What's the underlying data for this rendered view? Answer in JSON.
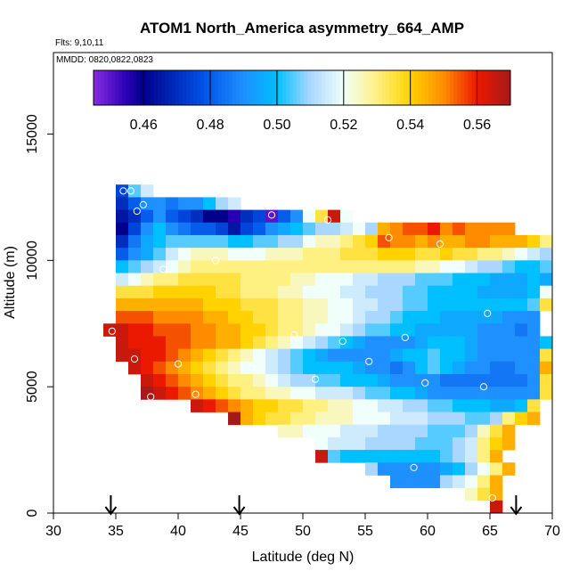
{
  "chart_data": {
    "type": "heatmap",
    "title": "ATOM1 North_America asymmetry_664_AMP",
    "flights_label": "Flts: 9,10,11",
    "dates_label": "MMDD: 0820,0822,0823",
    "xlabel": "Latitude (deg N)",
    "ylabel": "Altitude (m)",
    "xlim": [
      30,
      70
    ],
    "ylim": [
      0,
      18500
    ],
    "xticks": [
      30,
      35,
      40,
      45,
      50,
      55,
      60,
      65,
      70
    ],
    "yticks": [
      0,
      5000,
      10000,
      15000
    ],
    "colorbar": {
      "range": [
        0.445,
        0.57
      ],
      "ticks": [
        0.46,
        0.48,
        0.5,
        0.52,
        0.54,
        0.56
      ],
      "tick_labels": [
        "0.46",
        "0.48",
        "0.50",
        "0.52",
        "0.54",
        "0.56"
      ]
    },
    "bin_size": {
      "lat": 1,
      "alt": 500
    },
    "rows": [
      {
        "alt": 12750,
        "lat_start": 35,
        "values": [
          0.475,
          0.505,
          0.515
        ]
      },
      {
        "alt": 12250,
        "lat_start": 35,
        "values": [
          0.47,
          0.48,
          0.49,
          0.49,
          0.485,
          0.49,
          0.49,
          0.5,
          0.51,
          0.515
        ]
      },
      {
        "alt": 11750,
        "lat_start": 35,
        "values": [
          0.465,
          0.47,
          0.48,
          0.49,
          0.48,
          0.475,
          0.47,
          0.46,
          0.46,
          0.455,
          0.47,
          0.475,
          0.45,
          0.48,
          0.49,
          0.52,
          0.535,
          0.565,
          0.52
        ]
      },
      {
        "alt": 11250,
        "lat_start": 35,
        "values": [
          0.46,
          0.475,
          0.49,
          0.5,
          0.49,
          0.485,
          0.48,
          0.48,
          0.475,
          0.465,
          0.475,
          0.48,
          0.49,
          0.495,
          0.5,
          0.505,
          0.51,
          0.51,
          0.515,
          0.52,
          0.51,
          0.545,
          0.55,
          0.555,
          0.555,
          0.56,
          0.55,
          0.555,
          0.55,
          0.55,
          0.55,
          0.55
        ]
      },
      {
        "alt": 10750,
        "lat_start": 35,
        "values": [
          0.47,
          0.485,
          0.495,
          0.5,
          0.505,
          0.505,
          0.505,
          0.505,
          0.505,
          0.5,
          0.5,
          0.505,
          0.505,
          0.51,
          0.51,
          0.52,
          0.525,
          0.525,
          0.53,
          0.535,
          0.54,
          0.555,
          0.55,
          0.55,
          0.545,
          0.55,
          0.545,
          0.545,
          0.55,
          0.55,
          0.545,
          0.545,
          0.545,
          0.54,
          0.53,
          0.525
        ]
      },
      {
        "alt": 10250,
        "lat_start": 35,
        "values": [
          0.48,
          0.49,
          0.495,
          0.505,
          0.515,
          0.52,
          0.525,
          0.525,
          0.525,
          0.52,
          0.52,
          0.52,
          0.525,
          0.525,
          0.525,
          0.53,
          0.53,
          0.53,
          0.535,
          0.535,
          0.535,
          0.54,
          0.54,
          0.54,
          0.535,
          0.535,
          0.54,
          0.535,
          0.535,
          0.53,
          0.53,
          0.525,
          0.52,
          0.515,
          0.51,
          0.515
        ]
      },
      {
        "alt": 9750,
        "lat_start": 35,
        "values": [
          0.5,
          0.505,
          0.51,
          0.515,
          0.52,
          0.525,
          0.53,
          0.53,
          0.53,
          0.53,
          0.53,
          0.53,
          0.53,
          0.53,
          0.53,
          0.53,
          0.53,
          0.53,
          0.53,
          0.53,
          0.53,
          0.53,
          0.53,
          0.53,
          0.525,
          0.525,
          0.52,
          0.52,
          0.515,
          0.51,
          0.51,
          0.505,
          0.5,
          0.5,
          0.505
        ]
      },
      {
        "alt": 9250,
        "lat_start": 35,
        "values": [
          0.515,
          0.52,
          0.525,
          0.53,
          0.53,
          0.535,
          0.535,
          0.535,
          0.535,
          0.535,
          0.53,
          0.53,
          0.53,
          0.53,
          0.525,
          0.525,
          0.52,
          0.52,
          0.52,
          0.515,
          0.515,
          0.51,
          0.51,
          0.51,
          0.505,
          0.505,
          0.505,
          0.5,
          0.5,
          0.5,
          0.495,
          0.495,
          0.495,
          0.5,
          0.495
        ]
      },
      {
        "alt": 8750,
        "lat_start": 35,
        "values": [
          0.535,
          0.535,
          0.535,
          0.54,
          0.54,
          0.54,
          0.54,
          0.54,
          0.535,
          0.535,
          0.53,
          0.53,
          0.53,
          0.525,
          0.525,
          0.52,
          0.52,
          0.52,
          0.515,
          0.515,
          0.51,
          0.51,
          0.51,
          0.505,
          0.505,
          0.5,
          0.5,
          0.5,
          0.5,
          0.495,
          0.495,
          0.495,
          0.495,
          0.5,
          0.52
        ]
      },
      {
        "alt": 8250,
        "lat_start": 35,
        "values": [
          0.545,
          0.545,
          0.545,
          0.545,
          0.545,
          0.545,
          0.545,
          0.54,
          0.54,
          0.54,
          0.535,
          0.535,
          0.535,
          0.53,
          0.53,
          0.525,
          0.525,
          0.52,
          0.52,
          0.515,
          0.515,
          0.51,
          0.51,
          0.505,
          0.505,
          0.5,
          0.5,
          0.5,
          0.5,
          0.5,
          0.5,
          0.5,
          0.5,
          0.505,
          0.535
        ]
      },
      {
        "alt": 7750,
        "lat_start": 35,
        "values": [
          0.555,
          0.555,
          0.555,
          0.55,
          0.55,
          0.55,
          0.55,
          0.545,
          0.545,
          0.54,
          0.54,
          0.535,
          0.535,
          0.53,
          0.53,
          0.525,
          0.525,
          0.52,
          0.52,
          0.515,
          0.51,
          0.51,
          0.505,
          0.5,
          0.5,
          0.5,
          0.495,
          0.495,
          0.495,
          0.495,
          0.495,
          0.49,
          0.49,
          0.49
        ]
      },
      {
        "alt": 7250,
        "lat_start": 34,
        "values": [
          0.565,
          0.565,
          0.56,
          0.56,
          0.555,
          0.555,
          0.555,
          0.55,
          0.55,
          0.545,
          0.545,
          0.54,
          0.54,
          0.535,
          0.53,
          0.53,
          0.525,
          0.52,
          0.52,
          0.515,
          0.51,
          0.505,
          0.505,
          0.5,
          0.5,
          0.495,
          0.495,
          0.495,
          0.495,
          0.495,
          0.49,
          0.49,
          0.49,
          0.485,
          0.49
        ]
      },
      {
        "alt": 6750,
        "lat_start": 35,
        "values": [
          0.565,
          0.56,
          0.56,
          0.56,
          0.555,
          0.555,
          0.55,
          0.55,
          0.545,
          0.545,
          0.54,
          0.535,
          0.53,
          0.525,
          0.52,
          0.515,
          0.51,
          0.505,
          0.5,
          0.495,
          0.49,
          0.49,
          0.49,
          0.49,
          0.495,
          0.5,
          0.5,
          0.5,
          0.495,
          0.49,
          0.49,
          0.49,
          0.49,
          0.49,
          0.5
        ]
      },
      {
        "alt": 6250,
        "lat_start": 35,
        "values": [
          0.565,
          0.565,
          0.56,
          0.56,
          0.555,
          0.55,
          0.545,
          0.54,
          0.535,
          0.53,
          0.525,
          0.52,
          0.515,
          0.51,
          0.505,
          0.5,
          0.495,
          0.49,
          0.49,
          0.49,
          0.49,
          0.49,
          0.495,
          0.5,
          0.5,
          0.505,
          0.5,
          0.5,
          0.495,
          0.49,
          0.49,
          0.49,
          0.49,
          0.49,
          0.535
        ]
      },
      {
        "alt": 5750,
        "lat_start": 36,
        "values": [
          0.565,
          0.56,
          0.555,
          0.55,
          0.545,
          0.54,
          0.535,
          0.53,
          0.525,
          0.52,
          0.52,
          0.515,
          0.51,
          0.505,
          0.5,
          0.5,
          0.5,
          0.5,
          0.495,
          0.49,
          0.49,
          0.485,
          0.49,
          0.5,
          0.505,
          0.5,
          0.495,
          0.49,
          0.49,
          0.485,
          0.485,
          0.49,
          0.49,
          0.545
        ]
      },
      {
        "alt": 5250,
        "lat_start": 37,
        "values": [
          0.565,
          0.56,
          0.555,
          0.55,
          0.545,
          0.54,
          0.535,
          0.53,
          0.53,
          0.525,
          0.52,
          0.515,
          0.51,
          0.51,
          0.505,
          0.505,
          0.5,
          0.5,
          0.5,
          0.495,
          0.49,
          0.49,
          0.49,
          0.49,
          0.485,
          0.485,
          0.485,
          0.485,
          0.485,
          0.485,
          0.485,
          0.49,
          0.535
        ]
      },
      {
        "alt": 4750,
        "lat_start": 37,
        "values": [
          0.57,
          0.565,
          0.56,
          0.555,
          0.55,
          0.545,
          0.54,
          0.535,
          0.53,
          0.53,
          0.525,
          0.525,
          0.52,
          0.52,
          0.515,
          0.515,
          0.515,
          0.51,
          0.505,
          0.505,
          0.5,
          0.5,
          0.495,
          0.49,
          0.49,
          0.49,
          0.49,
          0.49,
          0.49,
          0.49,
          0.49,
          0.49,
          0.535
        ]
      },
      {
        "alt": 4250,
        "lat_start": 41,
        "values": [
          0.565,
          0.56,
          0.555,
          0.55,
          0.545,
          0.54,
          0.54,
          0.535,
          0.535,
          0.53,
          0.53,
          0.525,
          0.525,
          0.52,
          0.52,
          0.515,
          0.515,
          0.51,
          0.51,
          0.505,
          0.505,
          0.5,
          0.5,
          0.5,
          0.495,
          0.495,
          0.5,
          0.535
        ]
      },
      {
        "alt": 3750,
        "lat_start": 44,
        "values": [
          0.57,
          0.545,
          0.54,
          0.535,
          0.535,
          0.53,
          0.53,
          0.525,
          0.525,
          0.525,
          0.52,
          0.52,
          0.52,
          0.515,
          0.515,
          0.515,
          0.51,
          0.51,
          0.51,
          0.505,
          0.505,
          0.51,
          0.53,
          0.54,
          0.545
        ]
      },
      {
        "alt": 3250,
        "lat_start": 48,
        "values": [
          0.525,
          0.525,
          0.52,
          0.52,
          0.52,
          0.515,
          0.515,
          0.515,
          0.51,
          0.51,
          0.51,
          0.51,
          0.505,
          0.505,
          0.505,
          0.51,
          0.525,
          0.535,
          0.545
        ]
      },
      {
        "alt": 2750,
        "lat_start": 51,
        "values": [
          0.52,
          0.515,
          0.515,
          0.515,
          0.51,
          0.51,
          0.51,
          0.51,
          0.505,
          0.505,
          0.505,
          0.51,
          0.515,
          0.53,
          0.54,
          0.545
        ]
      },
      {
        "alt": 2250,
        "lat_start": 51,
        "values": [
          0.565,
          0.505,
          0.5,
          0.5,
          0.5,
          0.5,
          0.5,
          0.5,
          0.5,
          0.5,
          0.505,
          0.51,
          0.515,
          0.53,
          0.545
        ]
      },
      {
        "alt": 1750,
        "lat_start": 55,
        "values": [
          0.51,
          0.49,
          0.49,
          0.49,
          0.49,
          0.49,
          0.495,
          0.5,
          0.51,
          0.52,
          0.53,
          0.545
        ]
      },
      {
        "alt": 1250,
        "lat_start": 57,
        "values": [
          0.49,
          0.49,
          0.49,
          0.49,
          0.51,
          0.515,
          0.52,
          0.53,
          0.545
        ]
      },
      {
        "alt": 750,
        "lat_start": 63,
        "values": [
          0.525,
          0.535,
          0.545
        ]
      },
      {
        "alt": 250,
        "lat_start": 65,
        "values": [
          0.565
        ]
      }
    ],
    "markers": [
      [
        35.6,
        12750
      ],
      [
        36.2,
        12750
      ],
      [
        36.7,
        11950
      ],
      [
        34.6,
        11550
      ],
      [
        37.2,
        12200
      ],
      [
        38.8,
        9650
      ],
      [
        43.0,
        10000
      ],
      [
        47.5,
        11800
      ],
      [
        52.0,
        11600
      ],
      [
        56.9,
        10900
      ],
      [
        61.0,
        10650
      ],
      [
        34.7,
        7200
      ],
      [
        36.5,
        6100
      ],
      [
        40.0,
        5900
      ],
      [
        45.9,
        5750
      ],
      [
        49.3,
        7050
      ],
      [
        51.0,
        5300
      ],
      [
        53.2,
        6800
      ],
      [
        55.3,
        6000
      ],
      [
        58.2,
        6950
      ],
      [
        59.8,
        5150
      ],
      [
        64.5,
        5000
      ],
      [
        64.8,
        7900
      ],
      [
        37.8,
        4600
      ],
      [
        41.4,
        4700
      ],
      [
        58.9,
        1800
      ],
      [
        65.2,
        600
      ]
    ],
    "arrows": [
      34.6,
      44.9,
      67.1
    ]
  }
}
